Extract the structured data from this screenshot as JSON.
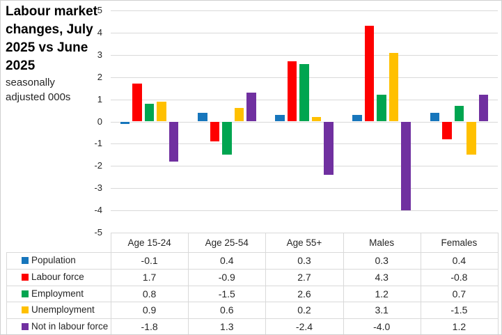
{
  "header": {
    "title": "Labour market changes, July 2025 vs June 2025",
    "subtitle": "seasonally adjusted 000s"
  },
  "chart_data": {
    "type": "bar",
    "title": "Labour market changes, July 2025 vs June 2025",
    "subtitle": "seasonally adjusted 000s",
    "categories": [
      "Age 15-24",
      "Age 25-54",
      "Age 55+",
      "Males",
      "Females"
    ],
    "series": [
      {
        "name": "Population",
        "color": "#1776bc",
        "values": [
          -0.1,
          0.4,
          0.3,
          0.3,
          0.4
        ],
        "values_display": [
          "-0.1",
          "0.4",
          "0.3",
          "0.3",
          "0.4"
        ]
      },
      {
        "name": "Labour force",
        "color": "#fe0000",
        "values": [
          1.7,
          -0.9,
          2.7,
          4.3,
          -0.8
        ],
        "values_display": [
          "1.7",
          "-0.9",
          "2.7",
          "4.3",
          "-0.8"
        ]
      },
      {
        "name": "Employment",
        "color": "#00a550",
        "values": [
          0.8,
          -1.5,
          2.6,
          1.2,
          0.7
        ],
        "values_display": [
          "0.8",
          "-1.5",
          "2.6",
          "1.2",
          "0.7"
        ]
      },
      {
        "name": "Unemployment",
        "color": "#ffc000",
        "values": [
          0.9,
          0.6,
          0.2,
          3.1,
          -1.5
        ],
        "values_display": [
          "0.9",
          "0.6",
          "0.2",
          "3.1",
          "-1.5"
        ]
      },
      {
        "name": "Not in labour force",
        "color": "#7030a0",
        "values": [
          -1.8,
          1.3,
          -2.4,
          -4.0,
          1.2
        ],
        "values_display": [
          "-1.8",
          "1.3",
          "-2.4",
          "-4.0",
          "1.2"
        ]
      }
    ],
    "ylim": [
      -5,
      5
    ],
    "ytick_step": 1,
    "yticks": [
      "5",
      "4",
      "3",
      "2",
      "1",
      "0",
      "-1",
      "-2",
      "-3",
      "-4",
      "-5"
    ],
    "grid": true,
    "legend_position": "table-below",
    "style": {
      "gridline_color": "#d9d9d9",
      "border_color": "#d9d9d9",
      "text_color": "#262626"
    }
  }
}
